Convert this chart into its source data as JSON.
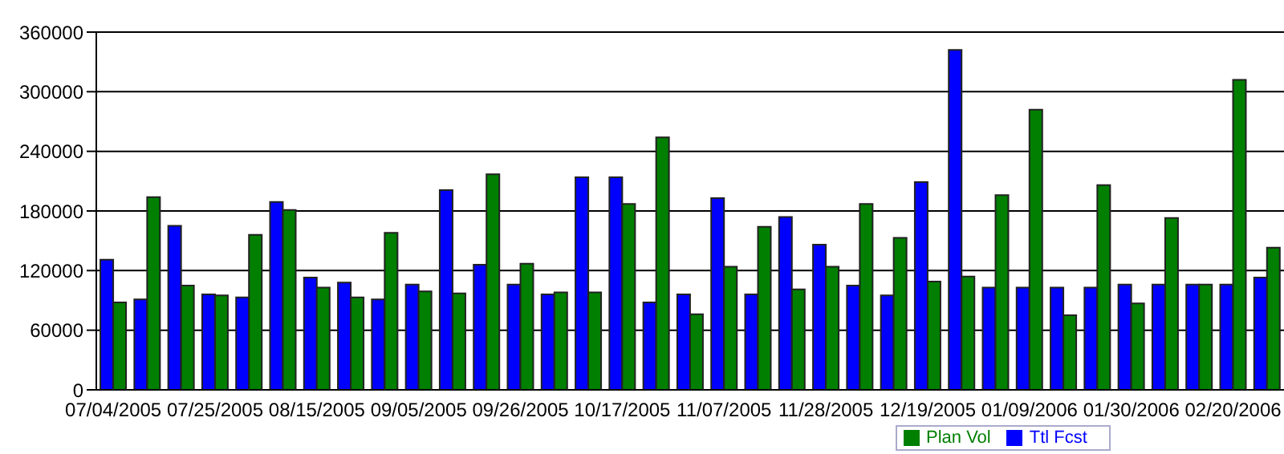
{
  "chart_data": {
    "type": "bar",
    "categories": [
      "07/04/2005",
      null,
      null,
      "07/25/2005",
      null,
      null,
      "08/15/2005",
      null,
      null,
      "09/05/2005",
      null,
      null,
      "09/26/2005",
      null,
      null,
      "10/17/2005",
      null,
      null,
      "11/07/2005",
      null,
      null,
      "11/28/2005",
      null,
      null,
      "12/19/2005",
      null,
      null,
      "01/09/2006",
      null,
      null,
      "01/30/2006",
      null,
      null,
      "02/20/2006",
      null
    ],
    "series": [
      {
        "name": "Ttl Fcst",
        "color": "#0000ff",
        "values": [
          131000,
          91000,
          165000,
          96000,
          93000,
          189000,
          113000,
          108000,
          91000,
          106000,
          201000,
          126000,
          106000,
          96000,
          214000,
          214000,
          88000,
          96000,
          193000,
          96000,
          174000,
          146000,
          105000,
          95000,
          209000,
          342000,
          103000,
          103000,
          103000,
          103000,
          106000,
          106000,
          106000,
          106000,
          113000
        ]
      },
      {
        "name": "Plan Vol",
        "color": "#007f00",
        "values": [
          88000,
          194000,
          105000,
          95000,
          156000,
          181000,
          103000,
          93000,
          158000,
          99000,
          97000,
          217000,
          127000,
          98000,
          98000,
          187000,
          254000,
          76000,
          124000,
          164000,
          101000,
          124000,
          187000,
          153000,
          109000,
          114000,
          196000,
          282000,
          75000,
          206000,
          87000,
          173000,
          106000,
          312000,
          143000
        ]
      }
    ],
    "ylim": [
      0,
      360000
    ],
    "yticks": [
      0,
      60000,
      120000,
      180000,
      240000,
      300000,
      360000
    ],
    "grid": "y",
    "legend": "bottom"
  }
}
